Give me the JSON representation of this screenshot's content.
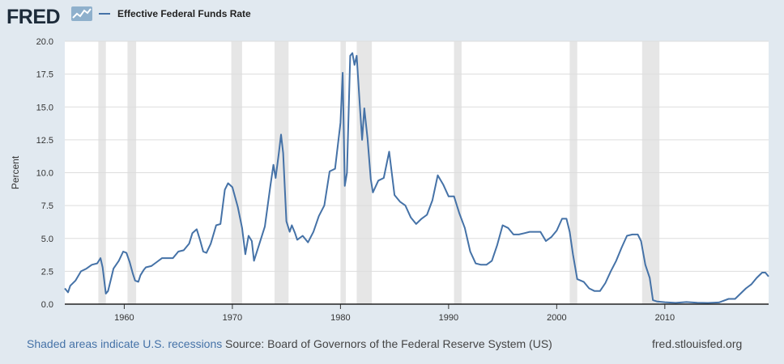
{
  "header": {
    "logo_text": "FRED",
    "legend_label": "Effective Federal Funds Rate"
  },
  "footer": {
    "recession_note": "Shaded areas indicate U.S. recessions",
    "source": "Source: Board of Governors of the Federal Reserve System (US)",
    "site": "fred.stlouisfed.org"
  },
  "colors": {
    "line": "#4572a7",
    "recession": "#e6e6e6",
    "grid": "#dddddd",
    "background": "#e1e9f0"
  },
  "chart_data": {
    "type": "line",
    "title": "",
    "xlabel": "",
    "ylabel": "Percent",
    "xlim": [
      1954.5,
      2019.6
    ],
    "ylim": [
      0,
      20
    ],
    "yticks": [
      "0.0",
      "2.5",
      "5.0",
      "7.5",
      "10.0",
      "12.5",
      "15.0",
      "17.5",
      "20.0"
    ],
    "xticks": [
      "1960",
      "1970",
      "1980",
      "1990",
      "2000",
      "2010"
    ],
    "grid": true,
    "legend": "top-left",
    "recessions": [
      [
        1957.6,
        1958.3
      ],
      [
        1960.3,
        1961.1
      ],
      [
        1969.9,
        1970.9
      ],
      [
        1973.9,
        1975.2
      ],
      [
        1980.0,
        1980.5
      ],
      [
        1981.5,
        1982.9
      ],
      [
        1990.5,
        1991.2
      ],
      [
        2001.2,
        2001.9
      ],
      [
        2007.9,
        2009.5
      ]
    ],
    "series": [
      {
        "name": "Effective Federal Funds Rate",
        "x": [
          1954.5,
          1954.8,
          1955.0,
          1955.5,
          1956.0,
          1956.5,
          1957.0,
          1957.5,
          1957.8,
          1958.0,
          1958.3,
          1958.5,
          1958.8,
          1959.0,
          1959.5,
          1959.9,
          1960.2,
          1960.5,
          1960.8,
          1961.0,
          1961.3,
          1961.5,
          1961.8,
          1962.0,
          1962.5,
          1963.0,
          1963.5,
          1964.0,
          1964.5,
          1965.0,
          1965.5,
          1966.0,
          1966.3,
          1966.7,
          1967.0,
          1967.3,
          1967.6,
          1968.0,
          1968.5,
          1968.9,
          1969.3,
          1969.6,
          1970.0,
          1970.5,
          1970.9,
          1971.2,
          1971.5,
          1971.8,
          1972.0,
          1972.5,
          1973.0,
          1973.5,
          1973.8,
          1974.0,
          1974.3,
          1974.5,
          1974.7,
          1975.0,
          1975.3,
          1975.5,
          1975.8,
          1976.0,
          1976.5,
          1977.0,
          1977.5,
          1978.0,
          1978.5,
          1979.0,
          1979.5,
          1980.0,
          1980.2,
          1980.4,
          1980.6,
          1980.9,
          1981.1,
          1981.3,
          1981.5,
          1981.8,
          1982.0,
          1982.2,
          1982.5,
          1982.8,
          1983.0,
          1983.5,
          1984.0,
          1984.5,
          1985.0,
          1985.5,
          1986.0,
          1986.5,
          1987.0,
          1987.5,
          1988.0,
          1988.5,
          1989.0,
          1989.5,
          1990.0,
          1990.5,
          1991.0,
          1991.5,
          1992.0,
          1992.5,
          1993.0,
          1993.5,
          1994.0,
          1994.5,
          1995.0,
          1995.5,
          1996.0,
          1996.5,
          1997.0,
          1997.5,
          1998.0,
          1998.5,
          1999.0,
          1999.5,
          2000.0,
          2000.5,
          2000.9,
          2001.2,
          2001.5,
          2001.9,
          2002.5,
          2003.0,
          2003.5,
          2004.0,
          2004.5,
          2005.0,
          2005.5,
          2006.0,
          2006.5,
          2007.0,
          2007.5,
          2007.8,
          2008.2,
          2008.6,
          2008.9,
          2009.3,
          2010.0,
          2011.0,
          2012.0,
          2013.0,
          2014.0,
          2015.0,
          2015.9,
          2016.5,
          2017.0,
          2017.5,
          2018.0,
          2018.5,
          2019.0,
          2019.3,
          2019.6
        ],
        "y": [
          1.2,
          0.9,
          1.4,
          1.8,
          2.5,
          2.7,
          3.0,
          3.1,
          3.5,
          2.8,
          0.8,
          1.0,
          2.0,
          2.7,
          3.3,
          4.0,
          3.9,
          3.2,
          2.3,
          1.8,
          1.7,
          2.2,
          2.6,
          2.8,
          2.9,
          3.2,
          3.5,
          3.5,
          3.5,
          4.0,
          4.1,
          4.6,
          5.4,
          5.7,
          4.9,
          4.0,
          3.9,
          4.6,
          6.0,
          6.1,
          8.7,
          9.2,
          8.9,
          7.4,
          5.8,
          3.8,
          5.2,
          4.8,
          3.3,
          4.6,
          5.9,
          8.9,
          10.6,
          9.6,
          11.5,
          12.9,
          11.5,
          6.3,
          5.5,
          6.0,
          5.4,
          4.9,
          5.2,
          4.7,
          5.5,
          6.7,
          7.5,
          10.1,
          10.3,
          13.8,
          17.6,
          9.0,
          10.0,
          18.9,
          19.1,
          18.2,
          18.9,
          15.0,
          12.5,
          14.9,
          12.6,
          9.5,
          8.5,
          9.4,
          9.6,
          11.6,
          8.3,
          7.8,
          7.5,
          6.6,
          6.1,
          6.5,
          6.8,
          7.9,
          9.8,
          9.1,
          8.2,
          8.2,
          6.9,
          5.8,
          4.0,
          3.1,
          3.0,
          3.0,
          3.3,
          4.5,
          6.0,
          5.8,
          5.3,
          5.3,
          5.4,
          5.5,
          5.5,
          5.5,
          4.8,
          5.1,
          5.6,
          6.5,
          6.5,
          5.5,
          3.8,
          1.9,
          1.7,
          1.2,
          1.0,
          1.0,
          1.6,
          2.5,
          3.3,
          4.3,
          5.2,
          5.3,
          5.3,
          4.8,
          3.0,
          2.0,
          0.3,
          0.2,
          0.15,
          0.1,
          0.16,
          0.11,
          0.09,
          0.13,
          0.4,
          0.4,
          0.8,
          1.2,
          1.5,
          2.0,
          2.4,
          2.4,
          2.1
        ]
      }
    ]
  }
}
